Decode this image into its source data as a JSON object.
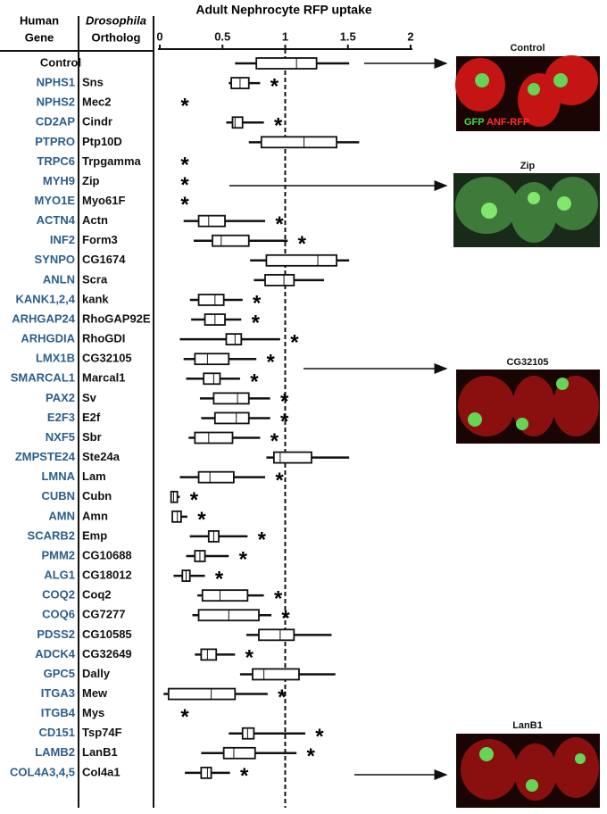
{
  "chart_data": {
    "type": "box",
    "title": "Adult Nephrocyte RFP uptake",
    "human_gene_header": [
      "Human",
      "Gene"
    ],
    "ortholog_header": [
      "Drosophila",
      "Ortholog"
    ],
    "human_genes": [
      null,
      "NPHS1",
      "NPHS2",
      "CD2AP",
      "PTPRO",
      "TRPC6",
      "MYH9",
      "MYO1E",
      "ACTN4",
      "INF2",
      "SYNPO",
      "ANLN",
      "KANK1,2,4",
      "ARHGAP24",
      "ARHGDIA",
      "LMX1B",
      "SMARCAL1",
      "PAX2",
      "E2F3",
      "NXF5",
      "ZMPSTE24",
      "LMNA",
      "CUBN",
      "AMN",
      "SCARB2",
      "PMM2",
      "ALG1",
      "COQ2",
      "COQ6",
      "PDSS2",
      "ADCK4",
      "GPC5",
      "ITGA3",
      "ITGB4",
      "CD151",
      "LAMB2",
      "COL4A3,4,5"
    ],
    "categories": [
      "Control",
      "Sns",
      "Mec2",
      "Cindr",
      "Ptp10D",
      "Trpgamma",
      "Zip",
      "Myo61F",
      "Actn",
      "Form3",
      "CG1674",
      "Scra",
      "kank",
      "RhoGAP92E",
      "RhoGDI",
      "CG32105",
      "Marcal1",
      "Sv",
      "E2f",
      "Sbr",
      "Ste24a",
      "Lam",
      "Cubn",
      "Amn",
      "Emp",
      "CG10688",
      "CG18012",
      "Coq2",
      "CG7277",
      "CG10585",
      "CG32649",
      "Dally",
      "Mew",
      "Mys",
      "Tsp74F",
      "LanB1",
      "Col4a1"
    ],
    "whisker_low": [
      0.6,
      0.55,
      null,
      0.53,
      0.71,
      null,
      null,
      null,
      0.19,
      0.27,
      0.72,
      0.75,
      0.24,
      0.25,
      0.16,
      0.19,
      0.21,
      0.32,
      0.33,
      0.23,
      0.85,
      0.16,
      0.09,
      0.1,
      0.24,
      0.21,
      0.11,
      0.3,
      0.26,
      0.69,
      0.28,
      0.64,
      0.03,
      null,
      0.55,
      0.33,
      0.2
    ],
    "q1": [
      0.77,
      0.57,
      null,
      0.58,
      0.81,
      null,
      null,
      null,
      0.31,
      0.42,
      0.85,
      0.84,
      0.31,
      0.36,
      0.53,
      0.28,
      0.35,
      0.43,
      0.44,
      0.28,
      0.91,
      0.31,
      0.09,
      0.1,
      0.39,
      0.28,
      0.18,
      0.34,
      0.31,
      0.79,
      0.33,
      0.74,
      0.07,
      null,
      0.66,
      0.51,
      0.33
    ],
    "median": [
      1.09,
      0.64,
      null,
      0.6,
      1.15,
      null,
      null,
      null,
      0.39,
      0.49,
      1.26,
      0.99,
      0.44,
      0.44,
      0.6,
      0.38,
      0.43,
      0.62,
      0.61,
      0.39,
      0.96,
      0.4,
      0.11,
      0.14,
      0.43,
      0.32,
      0.21,
      0.48,
      0.55,
      0.96,
      0.38,
      0.83,
      0.41,
      null,
      0.7,
      0.59,
      0.38
    ],
    "q3": [
      1.25,
      0.71,
      null,
      0.66,
      1.41,
      null,
      null,
      null,
      0.52,
      0.71,
      1.41,
      1.07,
      0.51,
      0.52,
      0.65,
      0.55,
      0.48,
      0.71,
      0.71,
      0.58,
      1.21,
      0.59,
      0.14,
      0.17,
      0.47,
      0.36,
      0.24,
      0.7,
      0.79,
      1.07,
      0.45,
      1.11,
      0.6,
      null,
      0.75,
      0.76,
      0.41
    ],
    "whisker_high": [
      1.51,
      0.8,
      null,
      0.83,
      1.59,
      null,
      null,
      null,
      0.84,
      1.02,
      1.51,
      1.31,
      0.66,
      0.65,
      0.96,
      0.77,
      0.64,
      0.88,
      0.88,
      0.8,
      1.51,
      0.84,
      0.16,
      0.22,
      0.7,
      0.55,
      0.36,
      0.83,
      0.89,
      1.37,
      0.6,
      1.4,
      0.86,
      null,
      1.16,
      1.09,
      0.56
    ],
    "significant": [
      false,
      true,
      true,
      true,
      false,
      true,
      true,
      true,
      true,
      true,
      false,
      false,
      true,
      true,
      true,
      true,
      true,
      true,
      true,
      true,
      false,
      true,
      true,
      true,
      true,
      true,
      true,
      true,
      true,
      false,
      true,
      false,
      true,
      true,
      true,
      true,
      true
    ],
    "significance_marker": "*",
    "reference_line": 1,
    "xlim": [
      0,
      2
    ],
    "xticks": [
      0,
      0.5,
      1,
      1.5,
      2
    ],
    "images": [
      {
        "title": "Control"
      },
      {
        "title": "Zip"
      },
      {
        "title": "CG32105"
      },
      {
        "title": "LanB1"
      }
    ],
    "image_legend": [
      "GFP",
      "ANF-RFP"
    ]
  }
}
